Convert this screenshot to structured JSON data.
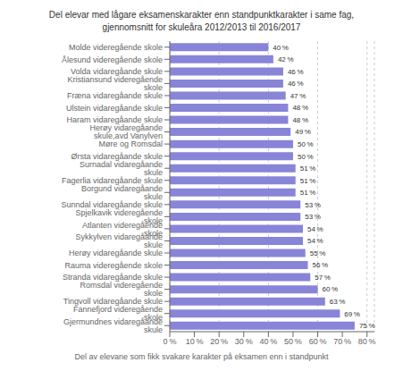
{
  "chart_data": {
    "type": "bar",
    "orientation": "horizontal",
    "title": "Del elevar med lågare eksamenskarakter enn standpunktkarakter i same fag,\ngjennomsnitt for skuleåra 2012/2013 til 2016/2017",
    "xlabel": "Del av elevane som fikk svakare karakter på eksamen enn i standpunkt",
    "categories": [
      "Gjermundnes vidaregåande skule",
      "Fannefjord videregående skole",
      "Tingvoll vidaregåande skule",
      "Romsdal videregående skole",
      "Stranda vidaregåande skule",
      "Rauma videregående skole",
      "Herøy vidaregåande skule",
      "Sykkylven vidaregåande skule",
      "Atlanten videregående skole",
      "Spjelkavik videregående skole",
      "Sunndal vidaregåande skule",
      "Borgund vidaregåande skule",
      "Fagerlia vidaregåande skule",
      "Surnadal vidaregåande skule",
      "Ørsta vidaregåande skule",
      "Møre og Romsdal",
      "Herøy vidaregåande skule,avd Vanylven",
      "Haram vidaregåande skule",
      "Ulstein vidaregåande skule",
      "Fræna vidaregåande skule",
      "Kristiansund videregående skole",
      "Volda vidaregåande skule",
      "Ålesund videregående skole",
      "Molde videregående skole"
    ],
    "values": [
      75,
      69,
      63,
      60,
      57,
      56,
      55,
      54,
      54,
      53,
      53,
      51,
      51,
      51,
      50,
      50,
      49,
      48,
      48,
      47,
      46,
      46,
      42,
      40
    ],
    "value_labels": [
      "75 %",
      "69 %",
      "63 %",
      "60 %",
      "57 %",
      "56 %",
      "55 %",
      "54 %",
      "54 %",
      "53 %",
      "53 %",
      "51 %",
      "51 %",
      "51 %",
      "50 %",
      "50 %",
      "49 %",
      "48 %",
      "48 %",
      "47 %",
      "46 %",
      "46 %",
      "42 %",
      "40 %"
    ],
    "color": "#8884d8",
    "xlim": [
      0,
      83
    ],
    "xticks": [
      {
        "value": 0,
        "label": "0 %"
      },
      {
        "value": 10,
        "label": "10 %"
      },
      {
        "value": 20,
        "label": "20 %"
      },
      {
        "value": 30,
        "label": "30 %"
      },
      {
        "value": 40,
        "label": "40 %"
      },
      {
        "value": 50,
        "label": "50 %"
      },
      {
        "value": 60,
        "label": "60 %"
      },
      {
        "value": 70,
        "label": "70 %"
      },
      {
        "value": 80,
        "label": "80 %"
      }
    ],
    "grid": true,
    "data_labels": true
  }
}
